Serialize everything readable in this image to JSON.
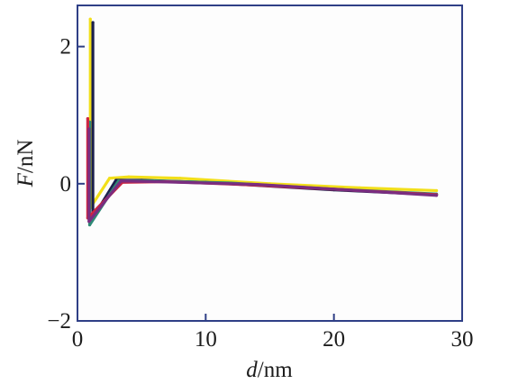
{
  "chart_data": {
    "type": "line",
    "title": "",
    "xlabel": "d/nm",
    "xlabel_var": "d",
    "xlabel_unit": "/nm",
    "ylabel": "F/nN",
    "ylabel_var": "F",
    "ylabel_unit": "/nN",
    "xlim": [
      0,
      30
    ],
    "ylim": [
      -2,
      2.6
    ],
    "x_ticks": [
      0,
      10,
      20,
      30
    ],
    "x_tick_labels": [
      "0",
      "10",
      "20",
      "30"
    ],
    "y_ticks": [
      -2,
      0,
      2
    ],
    "y_tick_labels": [
      "−2",
      "0",
      "2"
    ],
    "grid": false,
    "background": "#fdfdfd",
    "axis_color": "#2f3f86",
    "series": [
      {
        "color": "#f2df1a",
        "x": [
          1.0,
          1.0,
          2.5,
          4.0,
          8.0,
          15.0,
          22.0,
          28.0
        ],
        "y": [
          2.4,
          -0.35,
          0.08,
          0.1,
          0.08,
          0.0,
          -0.06,
          -0.1
        ]
      },
      {
        "color": "#1b1f4d",
        "x": [
          1.2,
          1.2,
          3.0,
          5.0,
          10.0,
          20.0,
          28.0
        ],
        "y": [
          2.35,
          -0.5,
          0.05,
          0.05,
          0.02,
          -0.09,
          -0.16
        ]
      },
      {
        "color": "#2e8a76",
        "x": [
          0.95,
          0.95,
          3.2,
          6.0,
          12.0,
          20.0,
          28.0
        ],
        "y": [
          0.9,
          -0.6,
          0.04,
          0.04,
          0.01,
          -0.08,
          -0.15
        ]
      },
      {
        "color": "#cc2442",
        "x": [
          0.8,
          0.8,
          3.5,
          7.0,
          14.0,
          21.0,
          28.0
        ],
        "y": [
          0.95,
          -0.5,
          0.02,
          0.03,
          -0.02,
          -0.09,
          -0.16
        ]
      },
      {
        "color": "#7a2d80",
        "x": [
          0.9,
          0.9,
          3.4,
          6.0,
          14.0,
          21.0,
          28.0
        ],
        "y": [
          0.8,
          -0.55,
          0.04,
          0.03,
          -0.01,
          -0.09,
          -0.17
        ]
      }
    ]
  }
}
